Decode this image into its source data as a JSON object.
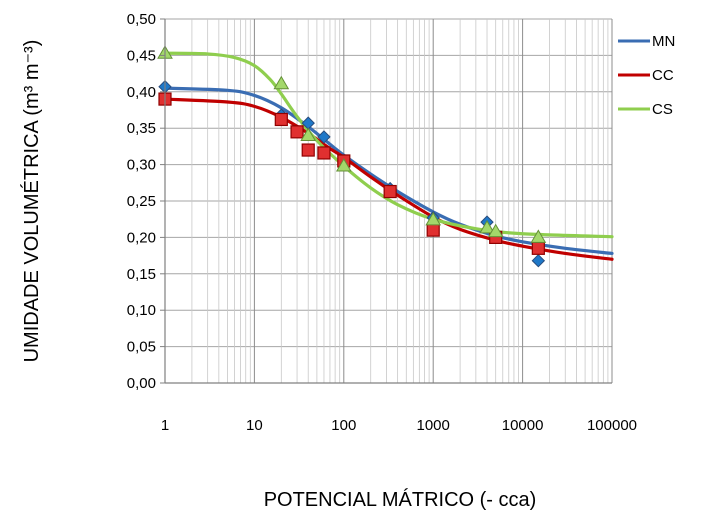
{
  "chart_data": {
    "type": "scatter",
    "xscale": "log",
    "xlim": [
      1,
      100000
    ],
    "ylim": [
      0,
      0.5
    ],
    "y_ticks": [
      "0,00",
      "0,05",
      "0,10",
      "0,15",
      "0,20",
      "0,25",
      "0,30",
      "0,35",
      "0,40",
      "0,45",
      "0,50"
    ],
    "x_ticks": [
      "1",
      "10",
      "100",
      "1000",
      "10000",
      "100000"
    ],
    "ylabel": "UMIDADE VOLUMÉTRICA (m³ m⁻³)",
    "xlabel": "POTENCIAL MÁTRICO (- cca)",
    "grid": true,
    "legend_position": "right",
    "series": [
      {
        "name": "MN",
        "color": "#3a6db3",
        "marker": "diamond",
        "points": [
          [
            1,
            0.407
          ],
          [
            20,
            0.368
          ],
          [
            40,
            0.357
          ],
          [
            60,
            0.338
          ],
          [
            100,
            0.305
          ],
          [
            330,
            0.267
          ],
          [
            1000,
            0.227
          ],
          [
            4000,
            0.221
          ],
          [
            15000,
            0.168
          ]
        ],
        "curve": [
          [
            1,
            0.405
          ],
          [
            5,
            0.402
          ],
          [
            10,
            0.395
          ],
          [
            20,
            0.378
          ],
          [
            40,
            0.352
          ],
          [
            70,
            0.328
          ],
          [
            100,
            0.313
          ],
          [
            200,
            0.287
          ],
          [
            400,
            0.263
          ],
          [
            1000,
            0.235
          ],
          [
            2000,
            0.218
          ],
          [
            5000,
            0.202
          ],
          [
            10000,
            0.194
          ],
          [
            30000,
            0.185
          ],
          [
            100000,
            0.178
          ]
        ]
      },
      {
        "name": "CC",
        "color": "#c00000",
        "marker": "square",
        "points": [
          [
            1,
            0.39
          ],
          [
            20,
            0.362
          ],
          [
            30,
            0.345
          ],
          [
            40,
            0.32
          ],
          [
            60,
            0.316
          ],
          [
            100,
            0.305
          ],
          [
            330,
            0.263
          ],
          [
            1000,
            0.21
          ],
          [
            5000,
            0.2
          ],
          [
            15000,
            0.185
          ]
        ],
        "curve": [
          [
            1,
            0.39
          ],
          [
            5,
            0.386
          ],
          [
            10,
            0.38
          ],
          [
            20,
            0.365
          ],
          [
            40,
            0.343
          ],
          [
            70,
            0.322
          ],
          [
            100,
            0.31
          ],
          [
            200,
            0.283
          ],
          [
            400,
            0.258
          ],
          [
            1000,
            0.228
          ],
          [
            2000,
            0.211
          ],
          [
            5000,
            0.196
          ],
          [
            10000,
            0.188
          ],
          [
            30000,
            0.178
          ],
          [
            100000,
            0.17
          ]
        ]
      },
      {
        "name": "CS",
        "color": "#8fce4e",
        "marker": "triangle",
        "points": [
          [
            1,
            0.453
          ],
          [
            20,
            0.411
          ],
          [
            40,
            0.34
          ],
          [
            100,
            0.298
          ],
          [
            1000,
            0.224
          ],
          [
            4000,
            0.213
          ],
          [
            5000,
            0.208
          ],
          [
            15000,
            0.2
          ]
        ],
        "curve": [
          [
            1,
            0.453
          ],
          [
            3,
            0.452
          ],
          [
            6,
            0.447
          ],
          [
            10,
            0.436
          ],
          [
            15,
            0.417
          ],
          [
            20,
            0.397
          ],
          [
            30,
            0.366
          ],
          [
            50,
            0.333
          ],
          [
            100,
            0.298
          ],
          [
            200,
            0.268
          ],
          [
            400,
            0.245
          ],
          [
            1000,
            0.225
          ],
          [
            3000,
            0.212
          ],
          [
            10000,
            0.205
          ],
          [
            100000,
            0.201
          ]
        ]
      }
    ]
  }
}
